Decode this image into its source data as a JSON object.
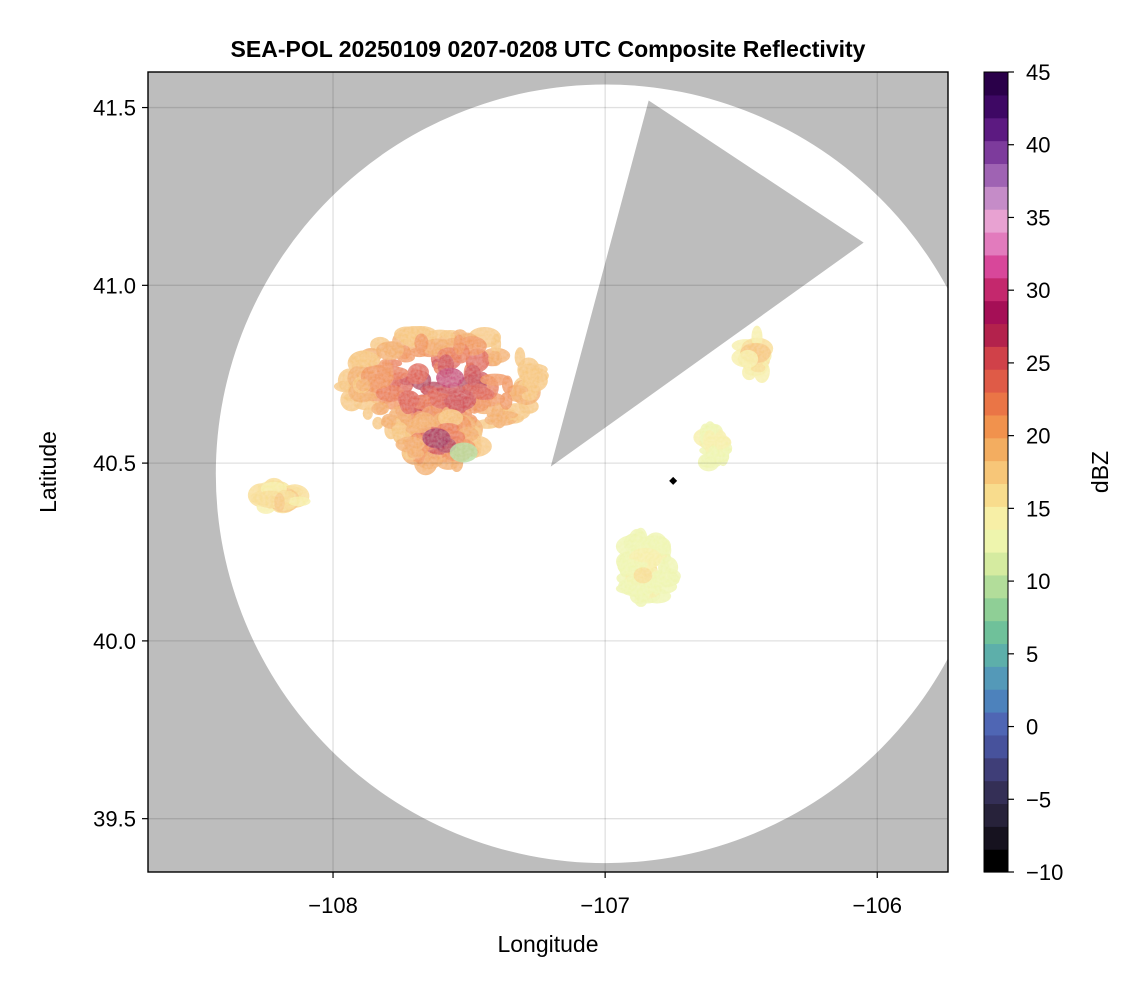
{
  "chart_data": {
    "type": "heatmap",
    "title": "SEA-POL 20250109 0207-0208 UTC Composite Reflectivity",
    "xlabel": "Longitude",
    "ylabel": "Latitude",
    "xlim": [
      -108.68,
      -105.74
    ],
    "ylim": [
      39.35,
      41.6
    ],
    "xticks": [
      -108,
      -107,
      -106
    ],
    "xtick_labels": [
      "−108",
      "−107",
      "−106"
    ],
    "yticks": [
      39.5,
      40.0,
      40.5,
      41.0,
      41.5
    ],
    "ytick_labels": [
      "39.5",
      "40.0",
      "40.5",
      "41.0",
      "41.5"
    ],
    "grid": true,
    "background_color": "#bdbdbd",
    "no_data_color": "#ffffff",
    "radar": {
      "center_lon": -107.0,
      "center_lat": 40.47,
      "range_deg_lat": 1.095,
      "blocked_sector_apex": [
        -107.2,
        40.49
      ],
      "blocked_sector_edges": [
        [
          -106.84,
          41.52
        ],
        [
          -106.05,
          41.12
        ]
      ]
    },
    "site_marker": {
      "lon": -106.75,
      "lat": 40.45,
      "shape": "diamond",
      "color": "#000000"
    },
    "echo_regions": [
      {
        "name": "northwest complex",
        "lon": -107.6,
        "lat": 40.72,
        "peak_dbz": 30
      },
      {
        "name": "southwest convection",
        "lon": -107.6,
        "lat": 40.56,
        "peak_dbz": 28
      },
      {
        "name": "west band",
        "lon": -108.2,
        "lat": 40.4,
        "peak_dbz": 18
      },
      {
        "name": "northeast cells",
        "lon": -106.45,
        "lat": 40.8,
        "peak_dbz": 18
      },
      {
        "name": "east cells",
        "lon": -106.6,
        "lat": 40.55,
        "peak_dbz": 15
      },
      {
        "name": "southeast cluster",
        "lon": -106.85,
        "lat": 40.2,
        "peak_dbz": 16
      }
    ],
    "colorbar": {
      "label": "dBZ",
      "min": -10,
      "max": 45,
      "ticks": [
        -10,
        -5,
        0,
        5,
        10,
        15,
        20,
        25,
        30,
        35,
        40,
        45
      ],
      "tick_labels": [
        "−10",
        "−5",
        "0",
        "5",
        "10",
        "15",
        "20",
        "25",
        "30",
        "35",
        "40",
        "45"
      ],
      "colors": [
        "#000000",
        "#16121f",
        "#27223a",
        "#342f56",
        "#3f3e78",
        "#47529c",
        "#4f66b4",
        "#4d82bc",
        "#5499b8",
        "#5dafaa",
        "#6fc19a",
        "#8fcf96",
        "#b2dd9a",
        "#d5eba0",
        "#eef5ad",
        "#f7efa6",
        "#f8dc8d",
        "#f7c678",
        "#f3ad60",
        "#f1924d",
        "#ea7546",
        "#df5b47",
        "#d04149",
        "#b3224c",
        "#a50f56",
        "#c4286d",
        "#d8479a",
        "#e27bbd",
        "#e8a2d2",
        "#c58cc8",
        "#9f63b3",
        "#7d3b9c",
        "#5c1a81",
        "#3e0864",
        "#2a0049"
      ]
    }
  }
}
